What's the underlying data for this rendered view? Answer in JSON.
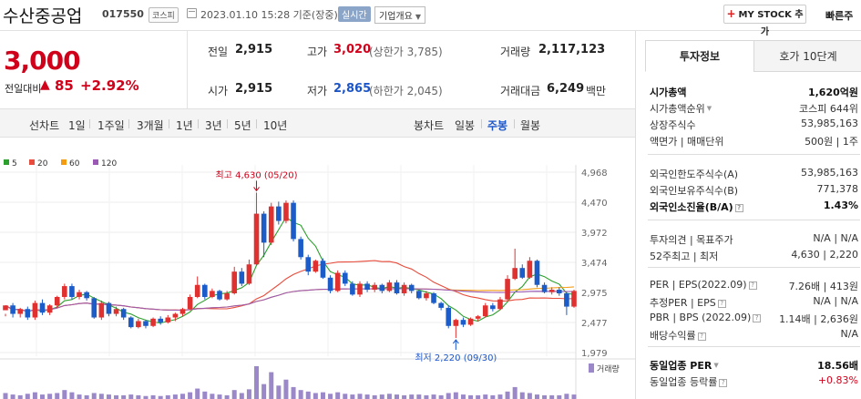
{
  "header": {
    "company_name": "수산중공업",
    "stock_code": "017550",
    "market_badge": "코스피",
    "date_text": "2023.01.10 15:28 기준(장중)",
    "realtime_badge": "실시간",
    "company_overview": "기업개요",
    "mystock_label": "MY STOCK 추가",
    "quick_order": "빠른주"
  },
  "price": {
    "current": "3,000",
    "change_label": "전일대비",
    "change_arrow": "▲",
    "change_value": "85",
    "change_pct": "+2.92%"
  },
  "quote": {
    "prev_label": "전일",
    "prev_value": "2,915",
    "high_label": "고가",
    "high_value": "3,020",
    "high_sub": "(상한가 3,785)",
    "volume_label": "거래량",
    "volume_value": "2,117,123",
    "open_label": "시가",
    "open_value": "2,915",
    "low_label": "저가",
    "low_value": "2,865",
    "low_sub": "(하한가 2,045)",
    "amount_label": "거래대금",
    "amount_value": "6,249",
    "amount_unit": "백만"
  },
  "period_bar": {
    "line_label": "선차트",
    "line_periods": [
      "1일",
      "1주일",
      "3개월",
      "1년",
      "3년",
      "5년",
      "10년"
    ],
    "candle_label": "봉차트",
    "candle_periods": [
      "일봉",
      "주봉",
      "월봉"
    ],
    "selected_candle": "주봉"
  },
  "chart_data": {
    "type": "candlestick",
    "legend": [
      {
        "name": "5",
        "color": "#2ca02c"
      },
      {
        "name": "20",
        "color": "#e74c3c"
      },
      {
        "name": "60",
        "color": "#f39c12"
      },
      {
        "name": "120",
        "color": "#9b59b6"
      }
    ],
    "y_ticks": [
      4968,
      4470,
      3972,
      3474,
      2975,
      2477,
      1979
    ],
    "ylim": [
      1979,
      4968
    ],
    "annotations": {
      "high_text": "최고 4,630 (05/20)",
      "low_text": "최저 2,220 (09/30)"
    },
    "volume_label": "거래량",
    "up_color": "#e03131",
    "down_color": "#1c5cc8",
    "candles": [
      [
        2680,
        2760,
        2620,
        2580
      ],
      [
        2760,
        2620,
        2800,
        2560
      ],
      [
        2620,
        2700,
        2720,
        2560
      ],
      [
        2700,
        2560,
        2740,
        2520
      ],
      [
        2560,
        2800,
        2840,
        2520
      ],
      [
        2800,
        2640,
        2860,
        2600
      ],
      [
        2640,
        2760,
        2780,
        2600
      ],
      [
        2760,
        2900,
        2920,
        2720
      ],
      [
        2900,
        3080,
        3120,
        2860
      ],
      [
        3080,
        2900,
        3120,
        2860
      ],
      [
        2900,
        2980,
        3020,
        2860
      ],
      [
        2980,
        2880,
        3000,
        2840
      ],
      [
        2880,
        2560,
        2900,
        2540
      ],
      [
        2560,
        2800,
        2840,
        2520
      ],
      [
        2800,
        2620,
        2820,
        2580
      ],
      [
        2620,
        2700,
        2740,
        2580
      ],
      [
        2700,
        2560,
        2720,
        2520
      ],
      [
        2560,
        2400,
        2580,
        2380
      ],
      [
        2400,
        2500,
        2540,
        2380
      ],
      [
        2500,
        2420,
        2520,
        2380
      ],
      [
        2420,
        2540,
        2560,
        2400
      ],
      [
        2540,
        2480,
        2580,
        2440
      ],
      [
        2480,
        2560,
        2600,
        2460
      ],
      [
        2560,
        2620,
        2640,
        2500
      ],
      [
        2620,
        2700,
        2720,
        2580
      ],
      [
        2700,
        2900,
        2940,
        2680
      ],
      [
        2900,
        3100,
        3240,
        2880
      ],
      [
        3100,
        2900,
        3120,
        2860
      ],
      [
        2900,
        3000,
        3040,
        2880
      ],
      [
        3000,
        2860,
        3020,
        2840
      ],
      [
        2860,
        2960,
        3000,
        2840
      ],
      [
        2960,
        3320,
        3400,
        2940
      ],
      [
        3320,
        3120,
        3380,
        3080
      ],
      [
        3120,
        3440,
        3520,
        3100
      ],
      [
        3440,
        4280,
        4630,
        3420
      ],
      [
        4280,
        3800,
        4320,
        3560
      ],
      [
        3800,
        4400,
        4460,
        3760
      ],
      [
        4400,
        4160,
        4480,
        4100
      ],
      [
        4160,
        4460,
        4500,
        4120
      ],
      [
        4460,
        3860,
        4500,
        3820
      ],
      [
        3860,
        3560,
        3900,
        3520
      ],
      [
        3560,
        3320,
        3600,
        3260
      ],
      [
        3320,
        3500,
        3520,
        3300
      ],
      [
        3500,
        3220,
        3540,
        3200
      ],
      [
        3220,
        3000,
        3260,
        2960
      ],
      [
        3000,
        3300,
        3340,
        2980
      ],
      [
        3300,
        3120,
        3340,
        3080
      ],
      [
        3120,
        2940,
        3160,
        2920
      ],
      [
        2940,
        3120,
        3160,
        2900
      ],
      [
        3120,
        3020,
        3160,
        2980
      ],
      [
        3020,
        3100,
        3140,
        2980
      ],
      [
        3100,
        3000,
        3120,
        2960
      ],
      [
        3000,
        3140,
        3180,
        2980
      ],
      [
        3140,
        2960,
        3180,
        2940
      ],
      [
        2960,
        3100,
        3140,
        2920
      ],
      [
        3100,
        3000,
        3120,
        2960
      ],
      [
        3000,
        2880,
        3020,
        2860
      ],
      [
        2880,
        2960,
        3000,
        2840
      ],
      [
        2960,
        2800,
        2980,
        2780
      ],
      [
        2800,
        2720,
        2820,
        2680
      ],
      [
        2720,
        2420,
        2760,
        2380
      ],
      [
        2420,
        2520,
        2540,
        2220
      ],
      [
        2520,
        2440,
        2560,
        2400
      ],
      [
        2440,
        2540,
        2560,
        2420
      ],
      [
        2540,
        2580,
        2600,
        2500
      ],
      [
        2580,
        2760,
        2800,
        2560
      ],
      [
        2760,
        2700,
        2800,
        2660
      ],
      [
        2700,
        2860,
        2900,
        2680
      ],
      [
        2860,
        3200,
        3260,
        2840
      ],
      [
        3200,
        3380,
        3700,
        3180
      ],
      [
        3380,
        3220,
        3440,
        3200
      ],
      [
        3220,
        3500,
        3560,
        3200
      ],
      [
        3500,
        3100,
        3520,
        3060
      ],
      [
        3100,
        2980,
        3140,
        2960
      ],
      [
        2980,
        3020,
        3060,
        2940
      ],
      [
        3020,
        2960,
        3060,
        2920
      ],
      [
        2960,
        2740,
        2980,
        2600
      ],
      [
        2740,
        3000,
        3020,
        2720
      ]
    ],
    "volumes": [
      8,
      6,
      5,
      7,
      9,
      6,
      7,
      8,
      12,
      9,
      6,
      5,
      8,
      7,
      6,
      5,
      5,
      6,
      5,
      4,
      5,
      4,
      5,
      6,
      7,
      9,
      14,
      10,
      7,
      6,
      5,
      12,
      8,
      13,
      44,
      20,
      36,
      18,
      26,
      16,
      12,
      10,
      8,
      9,
      7,
      9,
      7,
      6,
      7,
      6,
      5,
      6,
      7,
      6,
      5,
      6,
      6,
      5,
      6,
      5,
      8,
      9,
      6,
      5,
      5,
      6,
      5,
      6,
      10,
      16,
      9,
      8,
      6,
      5,
      5,
      5,
      7,
      6
    ]
  },
  "investment_info": {
    "tabs": [
      "투자정보",
      "호가 10단계"
    ],
    "rows": [
      {
        "k": "시가총액",
        "v": "1,620억원",
        "bold": true
      },
      {
        "k": "시가총액순위",
        "v": "코스피 644위",
        "tri": true
      },
      {
        "k": "상장주식수",
        "v": "53,985,163"
      },
      {
        "k": "액면가 | 매매단위",
        "v": "500원 | 1주"
      },
      {
        "k": "외국인한도주식수(A)",
        "v": "53,985,163"
      },
      {
        "k": "외국인보유주식수(B)",
        "v": "771,378"
      },
      {
        "k": "외국인소진율(B/A)",
        "v": "1.43%",
        "bold": true,
        "q": true
      },
      {
        "k": "투자의견 | 목표주가",
        "v": "N/A | N/A"
      },
      {
        "k": "52주최고 | 최저",
        "v": "4,630 | 2,220"
      },
      {
        "k": "PER | EPS(2022.09)",
        "v": "7.26배 | 413원",
        "q": true
      },
      {
        "k": "추정PER | EPS",
        "v": "N/A | N/A",
        "q": true
      },
      {
        "k": "PBR | BPS (2022.09)",
        "v": "1.14배 | 2,636원",
        "q": true
      },
      {
        "k": "배당수익률",
        "v": "N/A",
        "q": true
      },
      {
        "k": "동일업종 PER",
        "v": "18.56배",
        "bold": true,
        "tri": true
      },
      {
        "k": "동일업종 등락률",
        "v": "+0.83%",
        "red": true,
        "q": true
      }
    ]
  }
}
